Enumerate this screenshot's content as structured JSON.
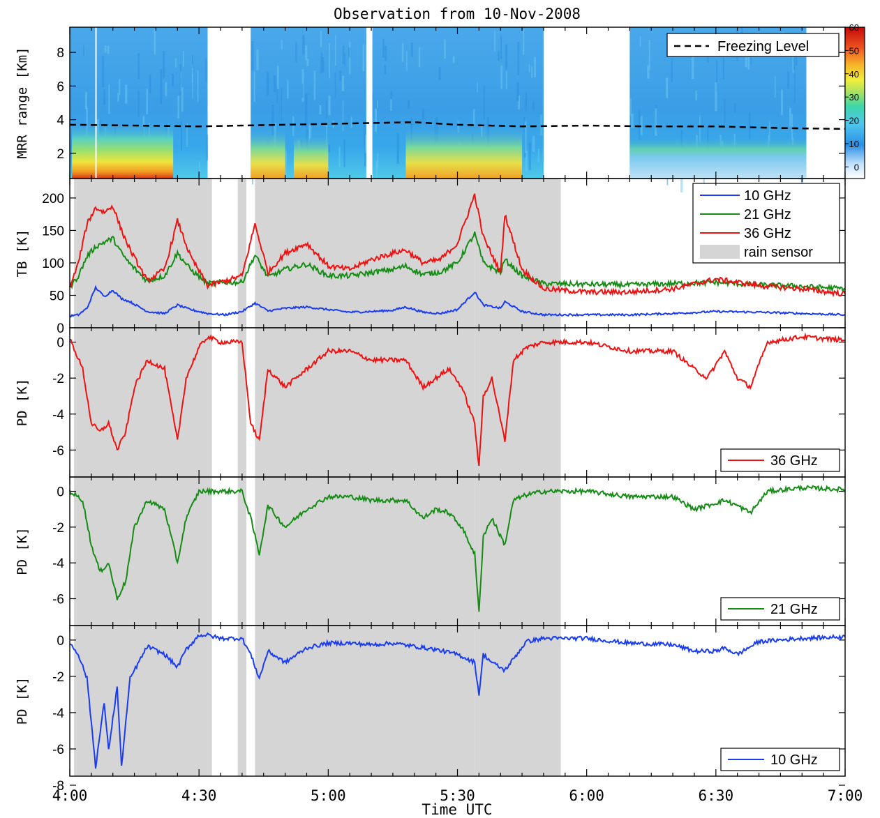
{
  "chart_data": {
    "type": "line",
    "title": "Observation from 10-Nov-2008",
    "xlabel": "Time UTC",
    "xlim": [
      "4:00",
      "7:00"
    ],
    "xticks": [
      "4:00",
      "4:30",
      "5:00",
      "5:30",
      "6:00",
      "6:30",
      "7:00"
    ],
    "rain_sensor_intervals": [
      [
        "4:01",
        "4:33"
      ],
      [
        "4:39",
        "4:41"
      ],
      [
        "4:43",
        "5:34"
      ],
      [
        "5:34",
        "5:54"
      ]
    ],
    "panels": [
      {
        "type": "heatmap",
        "ylabel": "MRR range [Km]",
        "ylim": [
          0.5,
          9.5
        ],
        "yticks": [
          "2",
          "4",
          "6",
          "8"
        ],
        "colorbar": {
          "min": -5,
          "max": 60,
          "ticks": [
            "60",
            "50",
            "40",
            "30",
            "20",
            "10",
            "0"
          ]
        },
        "data_intervals": [
          [
            "4:00",
            "4:32"
          ],
          [
            "4:42",
            "5:09"
          ],
          [
            "5:10",
            "5:50"
          ],
          [
            "6:10",
            "6:51"
          ]
        ],
        "series": [
          {
            "name": "Freezing Level",
            "x": [
              "4:00",
              "4:30",
              "5:00",
              "5:10",
              "5:20",
              "5:30",
              "5:45",
              "6:00",
              "6:15",
              "6:30",
              "6:45",
              "7:00"
            ],
            "values": [
              3.7,
              3.6,
              3.75,
              3.8,
              3.85,
              3.7,
              3.6,
              3.65,
              3.6,
              3.6,
              3.5,
              3.45
            ]
          }
        ],
        "legend": "top-right"
      },
      {
        "ylabel": "TB [K]",
        "ylim": [
          0,
          230
        ],
        "yticks": [
          "0",
          "50",
          "100",
          "150",
          "200"
        ],
        "legend": "top-right",
        "legend_items": [
          "10 GHz",
          "21 GHz",
          "36 GHz",
          "rain sensor"
        ],
        "series": [
          {
            "name": "10 GHz",
            "color": "#1a3cf0",
            "x": [
              "4:00",
              "4:02",
              "4:04",
              "4:06",
              "4:08",
              "4:10",
              "4:12",
              "4:14",
              "4:18",
              "4:22",
              "4:25",
              "4:28",
              "4:32",
              "4:36",
              "4:40",
              "4:43",
              "4:46",
              "4:50",
              "4:55",
              "5:00",
              "5:05",
              "5:10",
              "5:15",
              "5:18",
              "5:22",
              "5:26",
              "5:30",
              "5:34",
              "5:36",
              "5:40",
              "5:41",
              "5:45",
              "5:50",
              "6:00",
              "6:10",
              "6:20",
              "6:30",
              "6:40",
              "6:50",
              "7:00"
            ],
            "values": [
              18,
              20,
              30,
              62,
              48,
              58,
              45,
              40,
              25,
              22,
              35,
              28,
              22,
              20,
              25,
              38,
              26,
              30,
              32,
              28,
              24,
              25,
              27,
              32,
              24,
              22,
              28,
              55,
              35,
              30,
              40,
              25,
              20,
              20,
              20,
              22,
              25,
              24,
              22,
              20
            ]
          },
          {
            "name": "21 GHz",
            "color": "#158c15",
            "x": [
              "4:00",
              "4:02",
              "4:04",
              "4:06",
              "4:08",
              "4:10",
              "4:12",
              "4:14",
              "4:18",
              "4:22",
              "4:25",
              "4:28",
              "4:32",
              "4:36",
              "4:40",
              "4:43",
              "4:46",
              "4:50",
              "4:55",
              "5:00",
              "5:05",
              "5:10",
              "5:15",
              "5:18",
              "5:22",
              "5:26",
              "5:30",
              "5:34",
              "5:36",
              "5:40",
              "5:41",
              "5:45",
              "5:50",
              "6:00",
              "6:10",
              "6:20",
              "6:30",
              "6:40",
              "6:50",
              "7:00"
            ],
            "values": [
              62,
              80,
              110,
              125,
              132,
              138,
              115,
              98,
              72,
              80,
              115,
              90,
              68,
              70,
              70,
              112,
              78,
              90,
              98,
              80,
              80,
              85,
              90,
              95,
              82,
              86,
              100,
              145,
              100,
              85,
              105,
              80,
              68,
              67,
              66,
              68,
              70,
              66,
              64,
              60
            ]
          },
          {
            "name": "36 GHz",
            "color": "#ee1111",
            "x": [
              "4:00",
              "4:02",
              "4:04",
              "4:06",
              "4:08",
              "4:10",
              "4:12",
              "4:14",
              "4:18",
              "4:22",
              "4:25",
              "4:28",
              "4:32",
              "4:36",
              "4:40",
              "4:43",
              "4:46",
              "4:50",
              "4:55",
              "5:00",
              "5:05",
              "5:10",
              "5:15",
              "5:18",
              "5:22",
              "5:26",
              "5:30",
              "5:34",
              "5:36",
              "5:40",
              "5:41",
              "5:45",
              "5:50",
              "6:00",
              "6:10",
              "6:20",
              "6:30",
              "6:40",
              "6:50",
              "7:00"
            ],
            "values": [
              62,
              100,
              160,
              185,
              178,
              188,
              150,
              120,
              72,
              90,
              165,
              110,
              65,
              72,
              80,
              160,
              85,
              115,
              130,
              95,
              90,
              105,
              115,
              120,
              100,
              105,
              130,
              205,
              140,
              85,
              175,
              90,
              60,
              55,
              55,
              60,
              75,
              65,
              60,
              52
            ]
          }
        ]
      },
      {
        "ylabel": "PD [K]",
        "ylim": [
          -7.5,
          0.8
        ],
        "yticks": [
          "0",
          "-2",
          "-4",
          "-6"
        ],
        "legend": "bottom-right",
        "series": [
          {
            "name": "36 GHz",
            "color": "#ee1111",
            "x": [
              "4:00",
              "4:03",
              "4:05",
              "4:07",
              "4:09",
              "4:11",
              "4:13",
              "4:15",
              "4:18",
              "4:22",
              "4:25",
              "4:27",
              "4:30",
              "4:32",
              "4:35",
              "4:40",
              "4:42",
              "4:44",
              "4:46",
              "4:50",
              "4:55",
              "5:00",
              "5:05",
              "5:10",
              "5:15",
              "5:18",
              "5:22",
              "5:25",
              "5:28",
              "5:31",
              "5:34",
              "5:35",
              "5:36",
              "5:38",
              "5:41",
              "5:43",
              "5:46",
              "5:50",
              "6:00",
              "6:10",
              "6:20",
              "6:25",
              "6:28",
              "6:32",
              "6:35",
              "6:38",
              "6:42",
              "6:50",
              "7:00"
            ],
            "values": [
              0.2,
              -1.5,
              -4.5,
              -5,
              -4.5,
              -6,
              -5,
              -2.5,
              -1,
              -1.5,
              -5.5,
              -2,
              -0.3,
              0.3,
              0,
              0,
              -4.5,
              -5.5,
              -1.5,
              -2.5,
              -1.5,
              -0.5,
              -0.5,
              -1,
              -1,
              -1,
              -2.5,
              -2,
              -1.5,
              -2.5,
              -4.5,
              -7,
              -3,
              -2,
              -5.5,
              -1,
              -0.3,
              0,
              0,
              -0.5,
              -0.5,
              -1.5,
              -2,
              -0.5,
              -2,
              -2.5,
              0,
              0.3,
              0.1
            ]
          },
          {
            "name": "21 GHz",
            "color": "#158c15",
            "x": [
              "4:00",
              "4:03",
              "4:05",
              "4:07",
              "4:09",
              "4:11",
              "4:13",
              "4:15",
              "4:18",
              "4:22",
              "4:25",
              "4:27",
              "4:30",
              "4:32",
              "4:35",
              "4:40",
              "4:42",
              "4:44",
              "4:46",
              "4:50",
              "4:55",
              "5:00",
              "5:05",
              "5:10",
              "5:15",
              "5:18",
              "5:22",
              "5:25",
              "5:28",
              "5:31",
              "5:34",
              "5:35",
              "5:36",
              "5:38",
              "5:41",
              "5:43",
              "5:46",
              "5:50",
              "6:00",
              "6:10",
              "6:20",
              "6:25",
              "6:28",
              "6:32",
              "6:35",
              "6:38",
              "6:42",
              "6:50",
              "7:00"
            ],
            "values": [
              0,
              -0.5,
              -3,
              -4.5,
              -4,
              -6,
              -5,
              -2,
              -0.5,
              -1,
              -4,
              -1.5,
              0,
              0,
              0,
              0,
              -1.5,
              -3.5,
              -0.8,
              -2,
              -1,
              -0.3,
              -0.3,
              -0.5,
              -0.5,
              -0.5,
              -1.5,
              -1,
              -1.2,
              -2,
              -3.5,
              -6.8,
              -2.5,
              -1.5,
              -3,
              -0.5,
              -0.2,
              0,
              0,
              -0.3,
              -0.3,
              -1,
              -0.8,
              -0.5,
              -0.8,
              -1.2,
              0,
              0.2,
              0.1
            ]
          },
          {
            "name": "10 GHz",
            "color": "#1a3cf0",
            "x": [
              "4:00",
              "4:02",
              "4:04",
              "4:06",
              "4:08",
              "4:09",
              "4:11",
              "4:12",
              "4:14",
              "4:18",
              "4:22",
              "4:25",
              "4:27",
              "4:30",
              "4:32",
              "4:35",
              "4:40",
              "4:42",
              "4:44",
              "4:46",
              "4:50",
              "4:55",
              "5:00",
              "5:05",
              "5:10",
              "5:15",
              "5:20",
              "5:25",
              "5:30",
              "5:34",
              "5:35",
              "5:36",
              "5:38",
              "5:41",
              "5:46",
              "5:50",
              "6:00",
              "6:10",
              "6:20",
              "6:25",
              "6:30",
              "6:32",
              "6:35",
              "6:40",
              "6:50",
              "7:00"
            ],
            "values": [
              -0.3,
              -1,
              -2.5,
              -8,
              -4,
              -7,
              -3,
              -8,
              -2.5,
              -0.5,
              -1,
              -1.8,
              -0.7,
              0.2,
              0.2,
              0,
              0,
              -1,
              -2.5,
              -0.8,
              -1.5,
              -0.6,
              -0.3,
              -0.3,
              -0.4,
              -0.3,
              -0.5,
              -0.7,
              -1,
              -1.5,
              -3.5,
              -1,
              -1.5,
              -2,
              -0.2,
              0,
              0,
              -0.3,
              -0.4,
              -0.8,
              -0.8,
              -0.6,
              -1,
              -0.2,
              0,
              0.1
            ]
          }
        ]
      }
    ]
  }
}
